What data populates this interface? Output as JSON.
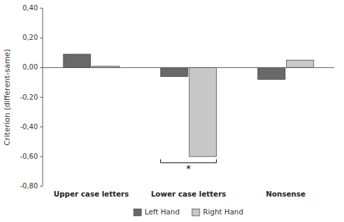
{
  "chart_data": {
    "type": "bar",
    "categories": [
      "Upper case letters",
      "Lower case letters",
      "Nonsense"
    ],
    "series": [
      {
        "name": "Left Hand",
        "color": "#696969",
        "values": [
          0.09,
          -0.06,
          -0.08
        ]
      },
      {
        "name": "Right Hand",
        "color": "#c8c8c8",
        "values": [
          0.01,
          -0.6,
          0.05
        ]
      }
    ],
    "ylabel": "Criterion (different-same)",
    "ylim": [
      -0.8,
      0.4
    ],
    "yticks": [
      {
        "value": -0.8,
        "label": "-0,80"
      },
      {
        "value": -0.6,
        "label": "-0,60"
      },
      {
        "value": -0.4,
        "label": "-0,40"
      },
      {
        "value": -0.2,
        "label": "-0,20"
      },
      {
        "value": 0.0,
        "label": "0,00"
      },
      {
        "value": 0.2,
        "label": "0,20"
      },
      {
        "value": 0.4,
        "label": "0,40"
      }
    ],
    "annotations": [
      {
        "text": "*",
        "category": "Lower case letters"
      }
    ],
    "legend": "bottom",
    "grid": false
  }
}
